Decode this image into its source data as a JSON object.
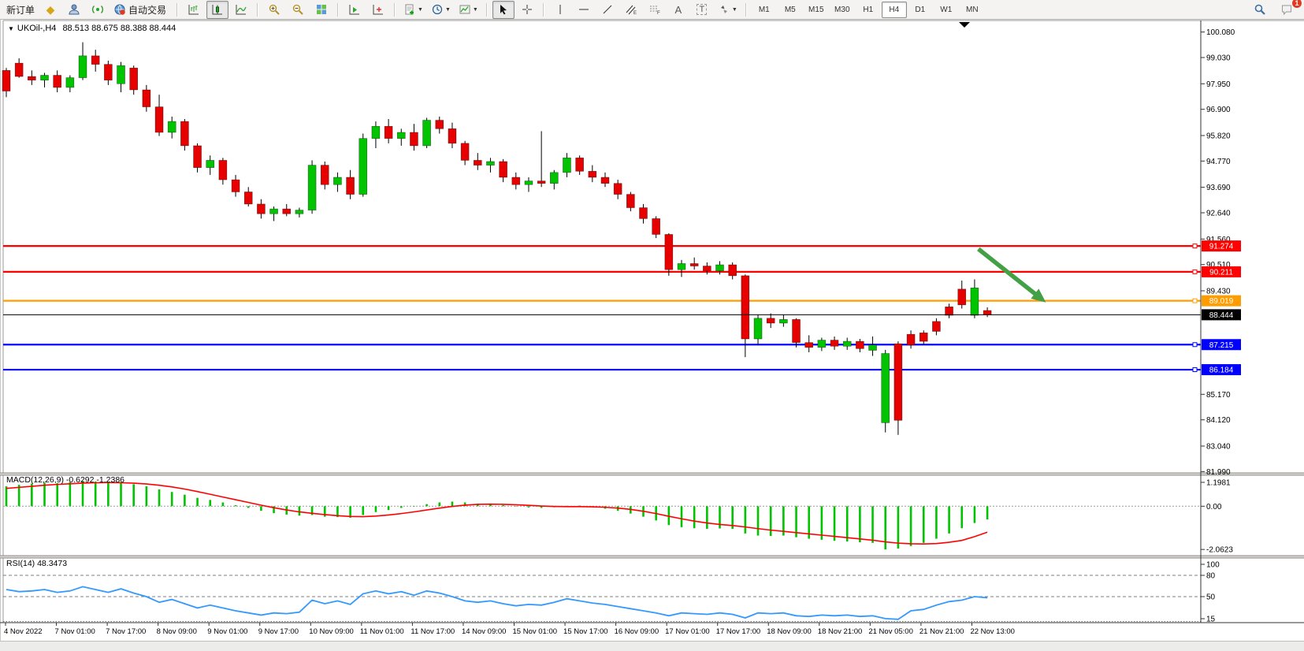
{
  "toolbar": {
    "new_order_label": "新订单",
    "autotrading_label": "自动交易",
    "text_tool_label": "A",
    "label_tool_label": "T",
    "timeframes": [
      "M1",
      "M5",
      "M15",
      "M30",
      "H1",
      "H4",
      "D1",
      "W1",
      "MN"
    ],
    "active_timeframe": "H4",
    "chat_badge": "1",
    "icons": [
      "quotes-icon",
      "market-watch-icon",
      "signals-icon",
      "autotrading-icon",
      "bar-chart-icon",
      "candlestick-icon",
      "line-chart-icon",
      "zoom-in-icon",
      "zoom-out-icon",
      "tile-windows-icon",
      "chart-forward-icon",
      "chart-shift-icon",
      "indicators-icon",
      "periods-icon",
      "template-icon",
      "cursor-icon",
      "crosshair-icon",
      "vline-icon",
      "hline-icon",
      "trendline-icon",
      "channel-icon",
      "fibonacci-icon",
      "text-icon",
      "label-icon",
      "arrows-icon",
      "search-icon",
      "chat-icon"
    ]
  },
  "chart": {
    "dropdown_glyph": "▼",
    "title_symbol": "UKOil-,H4",
    "title_ohlc": "88.513 88.675 88.388 88.444"
  },
  "chart_data": [
    {
      "type": "candlestick",
      "symbol": "UKOil-",
      "timeframe": "H4",
      "open": 88.513,
      "high": 88.675,
      "low": 88.388,
      "close": 88.444,
      "up_color": "#00c400",
      "down_color": "#e60000",
      "price_ticks": [
        "100.080",
        "99.030",
        "97.950",
        "96.900",
        "95.820",
        "94.770",
        "93.690",
        "92.640",
        "91.560",
        "90.510",
        "89.430",
        "85.170",
        "84.120",
        "83.040",
        "81.990"
      ],
      "price_tick_values": [
        100.08,
        99.03,
        97.95,
        96.9,
        95.82,
        94.77,
        93.69,
        92.64,
        91.56,
        90.51,
        89.43,
        85.17,
        84.12,
        83.04,
        81.99
      ],
      "x_labels": [
        "4 Nov 2022",
        "7 Nov 01:00",
        "7 Nov 17:00",
        "8 Nov 09:00",
        "9 Nov 01:00",
        "9 Nov 17:00",
        "10 Nov 09:00",
        "11 Nov 01:00",
        "11 Nov 17:00",
        "14 Nov 09:00",
        "15 Nov 01:00",
        "15 Nov 17:00",
        "16 Nov 09:00",
        "17 Nov 01:00",
        "17 Nov 17:00",
        "18 Nov 09:00",
        "18 Nov 21:00",
        "21 Nov 05:00",
        "21 Nov 21:00",
        "22 Nov 13:00"
      ],
      "levels": [
        {
          "price": 91.274,
          "label": "91.274",
          "color": "#ff0000"
        },
        {
          "price": 90.211,
          "label": "90.211",
          "color": "#ff0000"
        },
        {
          "price": 89.019,
          "label": "89.019",
          "color": "#ff9c00"
        },
        {
          "price": 87.215,
          "label": "87.215",
          "color": "#0000ff"
        },
        {
          "price": 86.184,
          "label": "86.184",
          "color": "#0000ff"
        }
      ],
      "current_price": {
        "price": 88.444,
        "label": "88.444",
        "color": "#000000"
      },
      "annotation_arrow": {
        "from_bar": 76.3,
        "from_price": 91.15,
        "to_bar": 81.6,
        "to_price": 88.95,
        "color": "#44a044"
      },
      "candles": [
        [
          98.5,
          98.6,
          97.4,
          97.65
        ],
        [
          98.8,
          99.0,
          98.2,
          98.25
        ],
        [
          98.25,
          98.5,
          97.9,
          98.1
        ],
        [
          98.1,
          98.4,
          97.8,
          98.3
        ],
        [
          98.3,
          98.5,
          97.6,
          97.8
        ],
        [
          97.8,
          98.3,
          97.6,
          98.2
        ],
        [
          98.2,
          99.66,
          98.1,
          99.1
        ],
        [
          99.1,
          99.35,
          98.45,
          98.75
        ],
        [
          98.75,
          98.9,
          97.9,
          98.1
        ],
        [
          97.95,
          98.85,
          97.6,
          98.7
        ],
        [
          98.6,
          98.7,
          97.5,
          97.7
        ],
        [
          97.7,
          97.9,
          96.8,
          97.0
        ],
        [
          97.0,
          97.5,
          95.8,
          95.95
        ],
        [
          95.95,
          96.6,
          95.7,
          96.4
        ],
        [
          96.4,
          96.5,
          95.2,
          95.4
        ],
        [
          95.4,
          95.5,
          94.3,
          94.5
        ],
        [
          94.5,
          95.0,
          94.2,
          94.8
        ],
        [
          94.8,
          94.9,
          93.8,
          94.0
        ],
        [
          94.0,
          94.2,
          93.3,
          93.5
        ],
        [
          93.5,
          93.7,
          92.9,
          93.0
        ],
        [
          93.0,
          93.2,
          92.4,
          92.6
        ],
        [
          92.6,
          92.9,
          92.3,
          92.8
        ],
        [
          92.8,
          93.0,
          92.5,
          92.6
        ],
        [
          92.6,
          92.85,
          92.45,
          92.75
        ],
        [
          92.75,
          94.8,
          92.6,
          94.6
        ],
        [
          94.6,
          94.75,
          93.6,
          93.8
        ],
        [
          93.8,
          94.3,
          93.5,
          94.1
        ],
        [
          94.1,
          94.4,
          93.2,
          93.4
        ],
        [
          93.4,
          95.9,
          93.3,
          95.7
        ],
        [
          95.7,
          96.4,
          95.3,
          96.2
        ],
        [
          96.2,
          96.5,
          95.5,
          95.7
        ],
        [
          95.7,
          96.1,
          95.4,
          95.95
        ],
        [
          95.95,
          96.3,
          95.2,
          95.4
        ],
        [
          95.4,
          96.55,
          95.3,
          96.45
        ],
        [
          96.45,
          96.6,
          95.9,
          96.1
        ],
        [
          96.1,
          96.35,
          95.3,
          95.5
        ],
        [
          95.5,
          95.6,
          94.6,
          94.8
        ],
        [
          94.8,
          95.1,
          94.4,
          94.6
        ],
        [
          94.6,
          94.9,
          94.3,
          94.75
        ],
        [
          94.75,
          94.85,
          93.9,
          94.1
        ],
        [
          94.1,
          94.3,
          93.6,
          93.8
        ],
        [
          93.8,
          94.1,
          93.5,
          93.95
        ],
        [
          93.95,
          96.0,
          93.7,
          93.85
        ],
        [
          93.85,
          94.4,
          93.6,
          94.3
        ],
        [
          94.3,
          95.1,
          94.1,
          94.9
        ],
        [
          94.9,
          95.0,
          94.2,
          94.35
        ],
        [
          94.35,
          94.6,
          93.9,
          94.1
        ],
        [
          94.1,
          94.3,
          93.7,
          93.85
        ],
        [
          93.85,
          94.0,
          93.2,
          93.4
        ],
        [
          93.4,
          93.5,
          92.7,
          92.85
        ],
        [
          92.85,
          93.0,
          92.2,
          92.4
        ],
        [
          92.4,
          92.5,
          91.6,
          91.75
        ],
        [
          91.75,
          91.8,
          90.05,
          90.3
        ],
        [
          90.3,
          90.7,
          90.0,
          90.55
        ],
        [
          90.55,
          90.8,
          90.3,
          90.45
        ],
        [
          90.45,
          90.6,
          90.1,
          90.25
        ],
        [
          90.25,
          90.65,
          90.1,
          90.5
        ],
        [
          90.5,
          90.6,
          89.9,
          90.05
        ],
        [
          90.05,
          90.1,
          86.7,
          87.45
        ],
        [
          87.45,
          88.45,
          87.2,
          88.3
        ],
        [
          88.3,
          88.5,
          87.9,
          88.1
        ],
        [
          88.1,
          88.45,
          87.95,
          88.25
        ],
        [
          88.25,
          88.3,
          87.1,
          87.3
        ],
        [
          87.3,
          87.6,
          86.9,
          87.1
        ],
        [
          87.1,
          87.5,
          86.95,
          87.4
        ],
        [
          87.4,
          87.55,
          87.0,
          87.15
        ],
        [
          87.15,
          87.5,
          87.0,
          87.35
        ],
        [
          87.35,
          87.45,
          86.9,
          87.05
        ],
        [
          86.98,
          87.55,
          86.75,
          87.2
        ],
        [
          84.0,
          87.0,
          83.6,
          86.85
        ],
        [
          87.25,
          87.35,
          83.5,
          84.1
        ],
        [
          87.64,
          87.8,
          87.05,
          87.2
        ],
        [
          87.7,
          87.8,
          87.2,
          87.35
        ],
        [
          88.17,
          88.3,
          87.6,
          87.76
        ],
        [
          88.77,
          88.9,
          88.3,
          88.42
        ],
        [
          89.5,
          89.85,
          88.7,
          88.85
        ],
        [
          88.42,
          89.9,
          88.3,
          89.55
        ],
        [
          88.62,
          88.75,
          88.35,
          88.444
        ]
      ]
    },
    {
      "type": "bar",
      "name": "MACD",
      "params": "(12,26,9)",
      "label": "MACD(12,26,9) -0.6292 -1.2386",
      "value": -0.6292,
      "signal_value": -1.2386,
      "bar_color": "#00c400",
      "signal_color": "#ff0000",
      "ticks": [
        "1.1981",
        "0.00",
        "-2.0623"
      ],
      "tick_values": [
        1.1981,
        0,
        -2.0623
      ],
      "values": [
        0.95,
        1.02,
        1.08,
        1.12,
        1.1,
        1.15,
        1.198,
        1.18,
        1.12,
        1.1,
        1.05,
        0.95,
        0.8,
        0.68,
        0.55,
        0.4,
        0.3,
        0.18,
        0.05,
        -0.08,
        -0.22,
        -0.33,
        -0.4,
        -0.45,
        -0.42,
        -0.5,
        -0.52,
        -0.55,
        -0.42,
        -0.28,
        -0.18,
        -0.08,
        -0.02,
        0.1,
        0.18,
        0.22,
        0.18,
        0.12,
        0.1,
        0.05,
        -0.02,
        -0.06,
        -0.08,
        -0.05,
        0.02,
        0.03,
        -0.05,
        -0.12,
        -0.22,
        -0.35,
        -0.5,
        -0.68,
        -0.9,
        -1.0,
        -1.05,
        -1.08,
        -1.06,
        -1.08,
        -1.3,
        -1.4,
        -1.42,
        -1.4,
        -1.48,
        -1.55,
        -1.6,
        -1.65,
        -1.68,
        -1.72,
        -1.75,
        -2.0623,
        -2.02,
        -1.9,
        -1.75,
        -1.55,
        -1.3,
        -1.05,
        -0.8,
        -0.6292
      ],
      "signal": [
        0.85,
        0.9,
        0.95,
        1.0,
        1.04,
        1.07,
        1.1,
        1.12,
        1.13,
        1.12,
        1.1,
        1.06,
        1.0,
        0.92,
        0.82,
        0.7,
        0.57,
        0.44,
        0.31,
        0.18,
        0.05,
        -0.07,
        -0.18,
        -0.27,
        -0.34,
        -0.4,
        -0.45,
        -0.49,
        -0.5,
        -0.47,
        -0.42,
        -0.35,
        -0.27,
        -0.18,
        -0.09,
        -0.01,
        0.05,
        0.09,
        0.1,
        0.09,
        0.07,
        0.04,
        0.01,
        -0.01,
        -0.02,
        -0.02,
        -0.03,
        -0.05,
        -0.09,
        -0.15,
        -0.24,
        -0.35,
        -0.48,
        -0.6,
        -0.71,
        -0.8,
        -0.87,
        -0.92,
        -0.99,
        -1.07,
        -1.14,
        -1.2,
        -1.26,
        -1.32,
        -1.38,
        -1.44,
        -1.5,
        -1.56,
        -1.62,
        -1.7,
        -1.76,
        -1.79,
        -1.8,
        -1.78,
        -1.72,
        -1.63,
        -1.45,
        -1.2386
      ]
    },
    {
      "type": "line",
      "name": "RSI",
      "params": "(14)",
      "label": "RSI(14) 48.3473",
      "value": 48.3473,
      "line_color": "#3399ff",
      "ticks": [
        "100",
        "80",
        "50",
        "15"
      ],
      "tick_values": [
        100,
        80,
        50,
        15
      ],
      "level_lines": [
        80,
        50,
        15
      ],
      "values": [
        60,
        57,
        58,
        60,
        56,
        58,
        64,
        60,
        56,
        61,
        55,
        50,
        42,
        46,
        40,
        34,
        38,
        34,
        30,
        27,
        24,
        27,
        26,
        28,
        45,
        40,
        44,
        39,
        54,
        58,
        54,
        57,
        52,
        58,
        55,
        50,
        44,
        42,
        44,
        40,
        37,
        39,
        38,
        42,
        47,
        44,
        41,
        39,
        36,
        33,
        30,
        27,
        23,
        27,
        26,
        25,
        27,
        25,
        20,
        27,
        26,
        27,
        23,
        22,
        24,
        23,
        24,
        22,
        23,
        19,
        18,
        30,
        32,
        38,
        43,
        45,
        50,
        48.3473
      ]
    }
  ]
}
